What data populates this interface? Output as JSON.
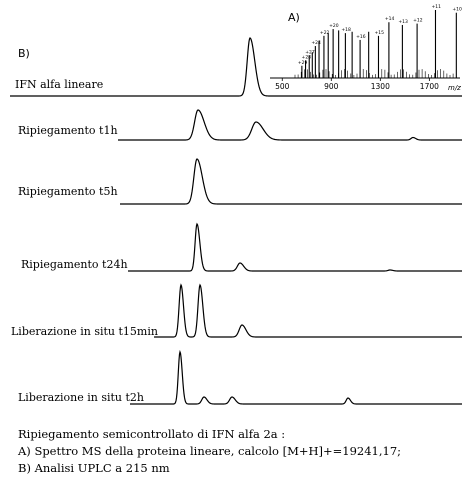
{
  "panel_labels": {
    "a": "A)",
    "b": "B)"
  },
  "traces": [
    {
      "label": "IFN alfa lineare"
    },
    {
      "label": "Ripiegamento t1h"
    },
    {
      "label": "Ripiegamento t5h"
    },
    {
      "label": "Ripiegamento t24h"
    },
    {
      "label": "Liberazione in situ t15min"
    },
    {
      "label": "Liberazione in situ t2h"
    }
  ],
  "chart_data": {
    "type": "bar",
    "xlabel": "m/z",
    "xlim": [
      400,
      1950
    ],
    "x_ticks": [
      "500",
      "900",
      "1300",
      "1700"
    ],
    "peaks": [
      {
        "mz": 660,
        "rel": 0.18,
        "label": "+29"
      },
      {
        "mz": 690,
        "rel": 0.26,
        "label": "+28"
      },
      {
        "mz": 720,
        "rel": 0.33,
        "label": "+27"
      },
      {
        "mz": 745,
        "rel": 0.38,
        "label": ""
      },
      {
        "mz": 770,
        "rel": 0.47,
        "label": "+24"
      },
      {
        "mz": 800,
        "rel": 0.55,
        "label": ""
      },
      {
        "mz": 840,
        "rel": 0.62,
        "label": "+22"
      },
      {
        "mz": 875,
        "rel": 0.66,
        "label": ""
      },
      {
        "mz": 915,
        "rel": 0.72,
        "label": "+20"
      },
      {
        "mz": 960,
        "rel": 0.7,
        "label": ""
      },
      {
        "mz": 1015,
        "rel": 0.66,
        "label": "+18"
      },
      {
        "mz": 1070,
        "rel": 0.68,
        "label": ""
      },
      {
        "mz": 1135,
        "rel": 0.56,
        "label": "+16"
      },
      {
        "mz": 1205,
        "rel": 0.68,
        "label": ""
      },
      {
        "mz": 1285,
        "rel": 0.62,
        "label": "+15"
      },
      {
        "mz": 1370,
        "rel": 0.82,
        "label": "+14"
      },
      {
        "mz": 1480,
        "rel": 0.78,
        "label": "+13"
      },
      {
        "mz": 1600,
        "rel": 0.8,
        "label": "+12"
      },
      {
        "mz": 1750,
        "rel": 1.0,
        "label": "+11"
      },
      {
        "mz": 1920,
        "rel": 0.96,
        "label": "+10"
      }
    ]
  },
  "caption": {
    "title": "Ripiegamento semicontrollato di IFN alfa 2a :",
    "line_a": "A)   Spettro MS della proteina lineare, calcolo [M+H]+=19241,17;",
    "line_b": "B)   Analisi UPLC a 215 nm"
  }
}
